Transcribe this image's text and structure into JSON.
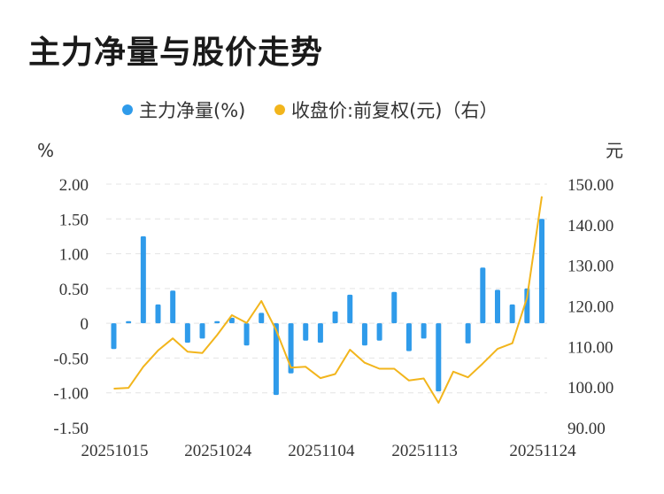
{
  "title": "主力净量与股价走势",
  "chart_data": {
    "type": "bar+line",
    "legend": [
      {
        "name": "主力净量(%)",
        "color": "#2f9bea"
      },
      {
        "name": "收盘价:前复权(元)（右）",
        "color": "#f2b51c"
      }
    ],
    "left_axis": {
      "unit": "%",
      "ticks": [
        "2.00",
        "1.50",
        "1.00",
        "0.50",
        "0",
        "-0.50",
        "-1.00",
        "-1.50"
      ],
      "range": [
        -1.5,
        2.0
      ]
    },
    "right_axis": {
      "unit": "元",
      "ticks": [
        "150.00",
        "140.00",
        "130.00",
        "120.00",
        "110.00",
        "100.00",
        "90.00"
      ],
      "range": [
        90,
        150
      ]
    },
    "x_labels": [
      "20251015",
      "20251024",
      "20251104",
      "20251113",
      "20251124"
    ],
    "x_label_indices": [
      0,
      7,
      14,
      21,
      29
    ],
    "bars": [
      -0.37,
      0.03,
      1.25,
      0.27,
      0.47,
      -0.28,
      -0.22,
      0.03,
      0.08,
      -0.32,
      0.15,
      -1.03,
      -0.72,
      -0.25,
      -0.28,
      0.17,
      0.41,
      -0.32,
      -0.25,
      0.45,
      -0.4,
      -0.22,
      -0.98,
      0.0,
      -0.29,
      0.8,
      0.48,
      0.27,
      0.5,
      1.5
    ],
    "line": [
      99.6,
      99.8,
      105.0,
      109.0,
      112.0,
      108.7,
      108.4,
      112.8,
      117.7,
      115.8,
      121.2,
      114.0,
      104.8,
      105.0,
      102.2,
      103.2,
      109.2,
      106.0,
      104.5,
      104.5,
      101.6,
      102.1,
      96.1,
      103.8,
      102.4,
      105.8,
      109.4,
      110.8,
      122.0,
      147.0
    ]
  }
}
